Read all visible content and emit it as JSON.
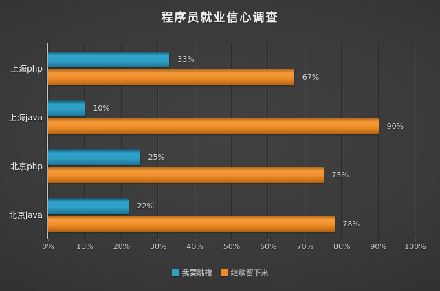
{
  "chart_data": {
    "type": "bar",
    "orientation": "horizontal",
    "title": "程序员就业信心调查",
    "categories": [
      "上海php",
      "上海java",
      "北京php",
      "北京java"
    ],
    "series": [
      {
        "name": "我要跳槽",
        "color_name": "blue",
        "color": "#2f9fc6",
        "values": [
          33,
          10,
          25,
          22
        ]
      },
      {
        "name": "继续留下来",
        "color_name": "orange",
        "color": "#ee8b26",
        "values": [
          67,
          90,
          75,
          78
        ]
      }
    ],
    "xlim": [
      0,
      100
    ],
    "x_ticks": [
      0,
      10,
      20,
      30,
      40,
      50,
      60,
      70,
      80,
      90,
      100
    ],
    "x_tick_suffix": "%",
    "value_label_suffix": "%",
    "grid": "vertical",
    "legend_position": "bottom",
    "background_color": "#3a3a3a",
    "text_color": "#ededed"
  }
}
